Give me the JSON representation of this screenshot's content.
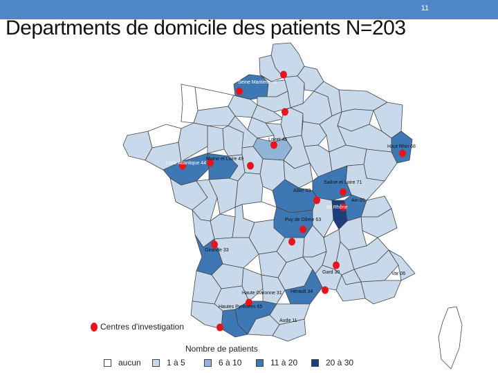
{
  "slide": {
    "number": "11",
    "title": "Departments de domicile des patients N=203"
  },
  "colors": {
    "aucun": "#ffffff",
    "1a5": "#c7d9ea",
    "6a10": "#91b5d8",
    "11a20": "#3d78b5",
    "20a30": "#1b3f7a",
    "centre": "#e8141c",
    "border": "#444444",
    "topbar": "#4f86c6"
  },
  "labels": {
    "seine_maritime": "Seine Maritime 76",
    "loiret": "Loiret 45",
    "haut_rhin": "Haut Rhin 68",
    "loire_atlantique": "Loire Atlantique 44",
    "maine_et_loire": "Maine et Loire 49",
    "saone_et_loire": "Saône et Loire 71",
    "allier": "Allier 03",
    "ain": "Ain 01",
    "rhone": "69 Rhône",
    "puy_de_dome": "Puy de Dôme 63",
    "gironde": "Gironde 33",
    "gard": "Gard 30",
    "var": "Var 06",
    "herault": "Hérault 34",
    "haute_garonne": "Haute Garonne 31",
    "hautes_pyrenees": "Hautes Pyrénées 65",
    "aude": "Aude 11"
  },
  "legend": {
    "centres_label": "Centres d'investigation",
    "title": "Nombre de patients",
    "items": [
      {
        "label": "aucun",
        "color": "#ffffff"
      },
      {
        "label": "1 à 5",
        "color": "#c7d9ea"
      },
      {
        "label": "6 à 10",
        "color": "#91b5d8"
      },
      {
        "label": "11 à 20",
        "color": "#3d78b5"
      },
      {
        "label": "20 à 30",
        "color": "#1b3f7a"
      }
    ]
  }
}
